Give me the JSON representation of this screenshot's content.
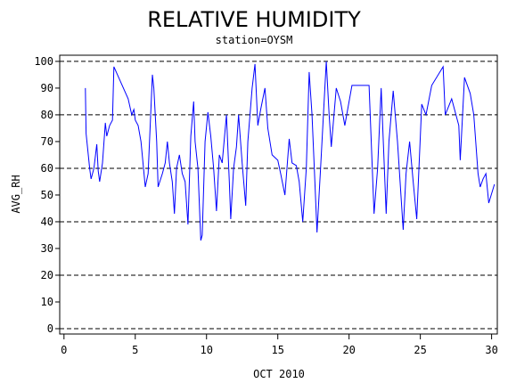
{
  "chart_data": {
    "type": "line",
    "title": "RELATIVE HUMIDITY",
    "subtitle": "station=OYSM",
    "xlabel": "OCT 2010",
    "ylabel": "AVG_RH",
    "x": [
      1.5,
      1.55,
      1.8,
      1.9,
      2.1,
      2.3,
      2.4,
      2.5,
      2.7,
      2.9,
      3.0,
      3.2,
      3.4,
      3.5,
      4.0,
      4.5,
      4.75,
      4.9,
      5.0,
      5.2,
      5.4,
      5.7,
      5.9,
      6.2,
      6.3,
      6.5,
      6.6,
      6.9,
      7.1,
      7.25,
      7.4,
      7.6,
      7.75,
      7.9,
      8.1,
      8.3,
      8.5,
      8.7,
      8.9,
      9.1,
      9.2,
      9.4,
      9.6,
      9.7,
      9.9,
      10.1,
      10.3,
      10.5,
      10.7,
      10.9,
      11.1,
      11.4,
      11.6,
      11.7,
      11.9,
      12.1,
      12.25,
      12.5,
      12.75,
      12.9,
      13.2,
      13.4,
      13.6,
      13.8,
      14.1,
      14.3,
      14.6,
      15.0,
      15.2,
      15.5,
      15.8,
      16.0,
      16.3,
      16.5,
      16.75,
      17.0,
      17.2,
      17.4,
      17.6,
      17.75,
      18.0,
      18.2,
      18.4,
      18.6,
      18.75,
      19.1,
      19.4,
      19.7,
      20.2,
      21.4,
      21.75,
      22.0,
      22.25,
      22.6,
      22.8,
      23.1,
      23.4,
      23.8,
      24.0,
      24.25,
      24.5,
      24.75,
      25.1,
      25.4,
      25.8,
      26.6,
      26.75,
      27.2,
      27.7,
      27.8,
      28.1,
      28.5,
      28.75,
      29.05,
      29.2,
      29.4,
      29.6,
      29.8,
      30.2
    ],
    "series": [
      {
        "name": "AVG_RH",
        "color": "#0000ff",
        "values": [
          90,
          73,
          60,
          56,
          60,
          69,
          59,
          55,
          62,
          77,
          72,
          76,
          78,
          98,
          92,
          86,
          80,
          82,
          78,
          76,
          70,
          53,
          58,
          95,
          90,
          70,
          53,
          58,
          62,
          70,
          62,
          55,
          43,
          60,
          65,
          58,
          55,
          39,
          72,
          85,
          70,
          60,
          33,
          35,
          70,
          81,
          72,
          60,
          44,
          65,
          62,
          80,
          55,
          41,
          60,
          68,
          80,
          62,
          46,
          70,
          90,
          99,
          76,
          82,
          90,
          75,
          65,
          63,
          58,
          50,
          71,
          62,
          61,
          55,
          40,
          60,
          96,
          80,
          55,
          36,
          60,
          80,
          100,
          80,
          68,
          90,
          85,
          76,
          91,
          91,
          43,
          60,
          90,
          43,
          70,
          89,
          70,
          37,
          58,
          70,
          55,
          41,
          84,
          80,
          91,
          98,
          80,
          86,
          76,
          63,
          94,
          88,
          80,
          58,
          53,
          56,
          58,
          47,
          54
        ]
      }
    ],
    "xlim": [
      -0.3,
      30.4
    ],
    "ylim": [
      -2,
      102.3
    ],
    "xticks": [
      0,
      5,
      10,
      15,
      20,
      25,
      30
    ],
    "yticks": [
      0,
      10,
      20,
      30,
      40,
      50,
      60,
      70,
      80,
      90,
      100
    ],
    "gridlines": [
      0,
      20,
      40,
      60,
      80,
      100
    ],
    "grid": true
  }
}
